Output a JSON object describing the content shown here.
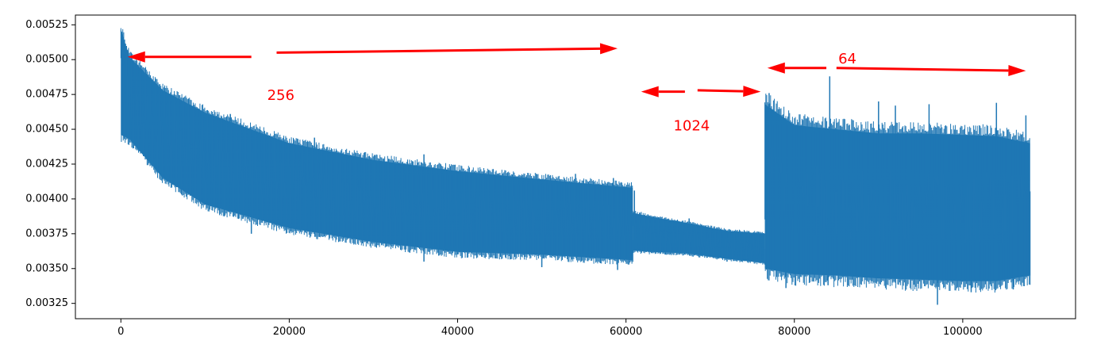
{
  "chart_data": {
    "type": "line",
    "title": "",
    "xlabel": "",
    "ylabel": "",
    "xlim": [
      -5400,
      113400
    ],
    "ylim": [
      0.00314,
      0.00532
    ],
    "grid": false,
    "legend": "none",
    "x_ticks": [
      {
        "value": 0,
        "label": "0"
      },
      {
        "value": 20000,
        "label": "20000"
      },
      {
        "value": 40000,
        "label": "40000"
      },
      {
        "value": 60000,
        "label": "60000"
      },
      {
        "value": 80000,
        "label": "80000"
      },
      {
        "value": 100000,
        "label": "100000"
      }
    ],
    "y_ticks": [
      {
        "value": 0.00325,
        "label": "0.00325"
      },
      {
        "value": 0.0035,
        "label": "0.00350"
      },
      {
        "value": 0.00375,
        "label": "0.00375"
      },
      {
        "value": 0.004,
        "label": "0.00400"
      },
      {
        "value": 0.00425,
        "label": "0.00425"
      },
      {
        "value": 0.0045,
        "label": "0.00450"
      },
      {
        "value": 0.00475,
        "label": "0.00475"
      },
      {
        "value": 0.005,
        "label": "0.00500"
      },
      {
        "value": 0.00525,
        "label": "0.00525"
      }
    ],
    "series": [
      {
        "color": "#1f77b4",
        "segments": [
          {
            "x_start": 0,
            "x_end": 60800,
            "upper": [
              [
                0,
                0.00522
              ],
              [
                1000,
                0.00502
              ],
              [
                5000,
                0.00478
              ],
              [
                10000,
                0.00462
              ],
              [
                20000,
                0.0044
              ],
              [
                30000,
                0.00428
              ],
              [
                40000,
                0.0042
              ],
              [
                50000,
                0.00414
              ],
              [
                60800,
                0.00408
              ]
            ],
            "lower": [
              [
                0,
                0.00446
              ],
              [
                1000,
                0.00443
              ],
              [
                5000,
                0.00415
              ],
              [
                10000,
                0.00396
              ],
              [
                20000,
                0.00379
              ],
              [
                30000,
                0.00369
              ],
              [
                40000,
                0.00362
              ],
              [
                50000,
                0.0036
              ],
              [
                60800,
                0.00356
              ]
            ],
            "spikes_up": [
              [
                0,
                0.00522
              ],
              [
                800,
                0.00505
              ],
              [
                13000,
                0.00461
              ],
              [
                23000,
                0.00444
              ],
              [
                36000,
                0.00432
              ],
              [
                54000,
                0.00418
              ],
              [
                58500,
                0.00415
              ]
            ],
            "spikes_down": [
              [
                15500,
                0.00375
              ],
              [
                36000,
                0.00355
              ],
              [
                50000,
                0.00351
              ],
              [
                59000,
                0.00349
              ]
            ]
          },
          {
            "x_start": 60800,
            "x_end": 76500,
            "upper": [
              [
                60800,
                0.0039
              ],
              [
                63000,
                0.00387
              ],
              [
                67000,
                0.00383
              ],
              [
                72000,
                0.00377
              ],
              [
                76500,
                0.00375
              ]
            ],
            "lower": [
              [
                60800,
                0.00363
              ],
              [
                63000,
                0.00362
              ],
              [
                67000,
                0.00361
              ],
              [
                72000,
                0.00357
              ],
              [
                76500,
                0.00354
              ]
            ],
            "spikes_up": [
              [
                61000,
                0.00406
              ],
              [
                67500,
                0.00386
              ]
            ],
            "spikes_down": [
              [
                72000,
                0.00355
              ]
            ]
          },
          {
            "x_start": 76500,
            "x_end": 108000,
            "upper": [
              [
                76500,
                0.00468
              ],
              [
                80000,
                0.00453
              ],
              [
                85000,
                0.0045
              ],
              [
                90000,
                0.00447
              ],
              [
                95000,
                0.00447
              ],
              [
                100000,
                0.00446
              ],
              [
                104000,
                0.00445
              ],
              [
                108000,
                0.0044
              ]
            ],
            "lower": [
              [
                76500,
                0.0035
              ],
              [
                80000,
                0.00346
              ],
              [
                85000,
                0.00345
              ],
              [
                90000,
                0.00343
              ],
              [
                95000,
                0.00342
              ],
              [
                100000,
                0.00341
              ],
              [
                104000,
                0.00341
              ],
              [
                108000,
                0.00345
              ]
            ],
            "spikes_up": [
              [
                77000,
                0.00476
              ],
              [
                84200,
                0.00488
              ],
              [
                90000,
                0.0047
              ],
              [
                92000,
                0.00467
              ],
              [
                96000,
                0.00468
              ],
              [
                104000,
                0.00469
              ],
              [
                107500,
                0.0046
              ]
            ],
            "spikes_down": [
              [
                79000,
                0.00336
              ],
              [
                84000,
                0.00338
              ],
              [
                97000,
                0.00324
              ],
              [
                101000,
                0.00333
              ],
              [
                106000,
                0.00335
              ]
            ]
          }
        ]
      }
    ],
    "annotations": [
      {
        "text": "256",
        "color": "#ff0000",
        "text_pos": [
          19000,
          0.00474
        ],
        "arrows": [
          {
            "from": [
              15500,
              0.00502
            ],
            "to": [
              800,
              0.00502
            ]
          },
          {
            "from": [
              18500,
              0.00505
            ],
            "to": [
              59000,
              0.00508
            ]
          }
        ]
      },
      {
        "text": "1024",
        "color": "#ff0000",
        "text_pos": [
          67800,
          0.00452
        ],
        "arrows": [
          {
            "from": [
              67000,
              0.00477
            ],
            "to": [
              61800,
              0.00477
            ]
          },
          {
            "from": [
              68500,
              0.00478
            ],
            "to": [
              76000,
              0.00477
            ]
          }
        ]
      },
      {
        "text": "64",
        "color": "#ff0000",
        "text_pos": [
          86300,
          0.005
        ],
        "arrows": [
          {
            "from": [
              83800,
              0.00494
            ],
            "to": [
              76800,
              0.00494
            ]
          },
          {
            "from": [
              85000,
              0.00494
            ],
            "to": [
              107500,
              0.00492
            ]
          }
        ]
      }
    ]
  }
}
